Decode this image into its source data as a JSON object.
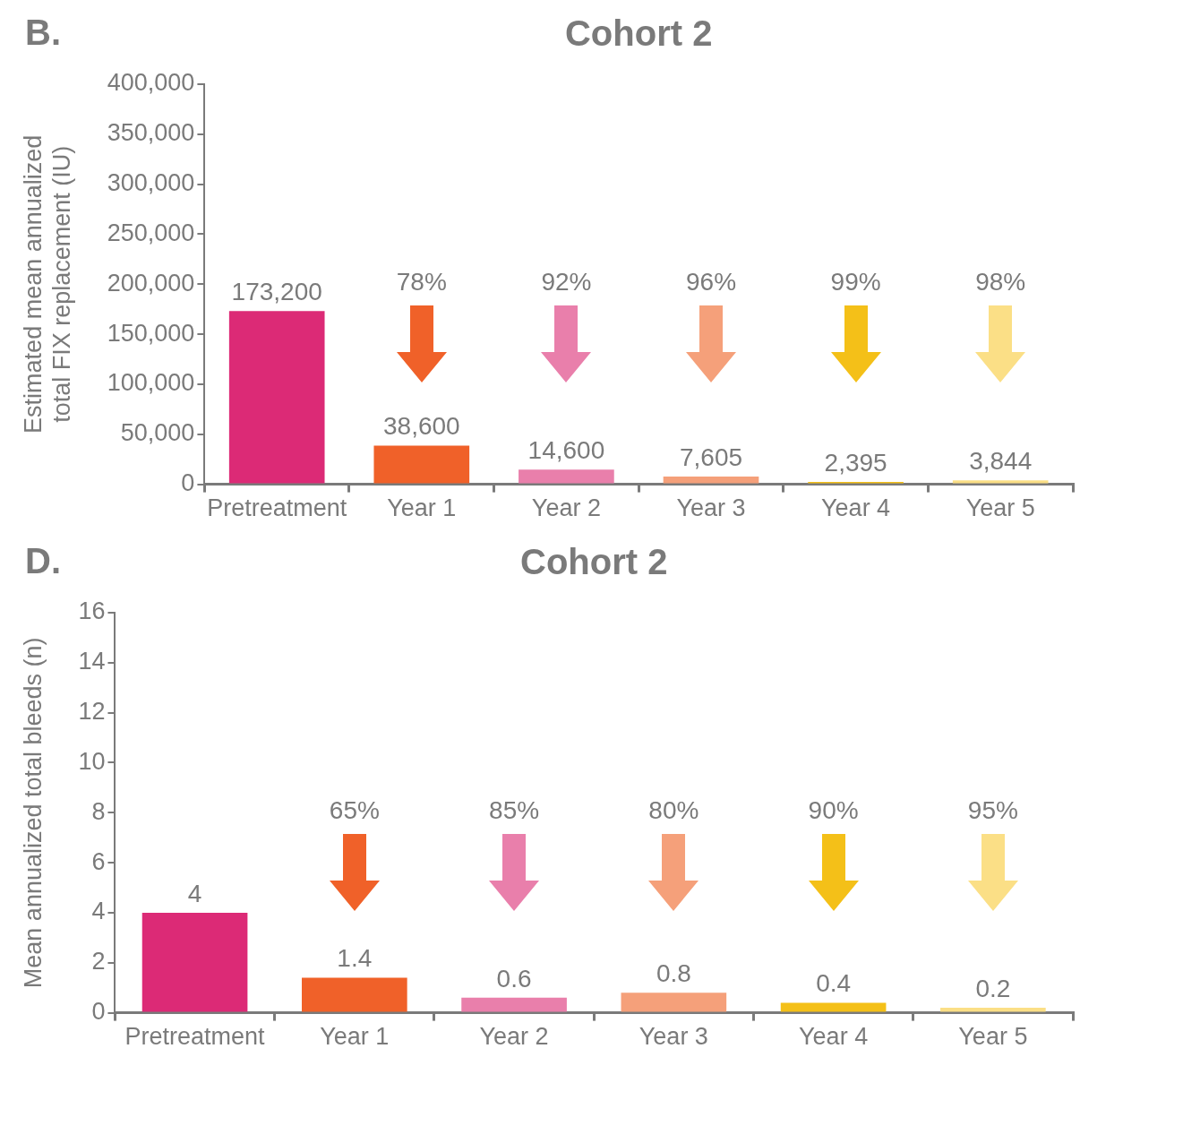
{
  "chart_data": [
    {
      "type": "bar",
      "title": "Cohort 2",
      "ylabel": "Estimated mean annualized total FIX replacement (IU)",
      "categories": [
        "Pretreatment",
        "Year 1",
        "Year 2",
        "Year 3",
        "Year 4",
        "Year 5"
      ],
      "values": [
        173200,
        38600,
        14600,
        7605,
        2395,
        3844
      ],
      "value_labels": [
        "173,200",
        "38,600",
        "14,600",
        "7,605",
        "2,395",
        "3,844"
      ],
      "colors": [
        "#dc2a76",
        "#f06129",
        "#e97fab",
        "#f5a07a",
        "#f4c018",
        "#fbdf86"
      ],
      "ylim": [
        0,
        400000
      ],
      "yticks": [
        0,
        {
          "value": 50000,
          "label": "50,000"
        },
        {
          "value": 100000,
          "label": "100,000"
        },
        {
          "value": 150000,
          "label": "150,000"
        },
        {
          "value": 200000,
          "label": "200,000"
        },
        {
          "value": 250000,
          "label": "250,000"
        },
        {
          "value": 300000,
          "label": "300,000"
        },
        {
          "value": 350000,
          "label": "350,000"
        },
        {
          "value": 400000,
          "label": "400,000"
        }
      ],
      "grid": false,
      "legend": false,
      "annotations": [
        "B.",
        "78%",
        "92%",
        "96%",
        "99%",
        "98%"
      ]
    },
    {
      "type": "bar",
      "title": "Cohort 2",
      "ylabel": "Mean annualized total bleeds (n)",
      "categories": [
        "Pretreatment",
        "Year 1",
        "Year 2",
        "Year 3",
        "Year 4",
        "Year 5"
      ],
      "values": [
        4,
        1.4,
        0.6,
        0.8,
        0.4,
        0.2
      ],
      "colors": [
        "#dc2a76",
        "#f06129",
        "#e97fab",
        "#f5a07a",
        "#f4c018",
        "#fbdf86"
      ],
      "ylim": [
        0,
        16
      ],
      "yticks": [
        0,
        2,
        4,
        6,
        8,
        10,
        12,
        14,
        16
      ],
      "data_labels": true,
      "grid": false,
      "legend": false,
      "annotations": [
        "D.",
        "65%",
        "85%",
        "80%",
        "90%",
        "95%"
      ]
    }
  ]
}
